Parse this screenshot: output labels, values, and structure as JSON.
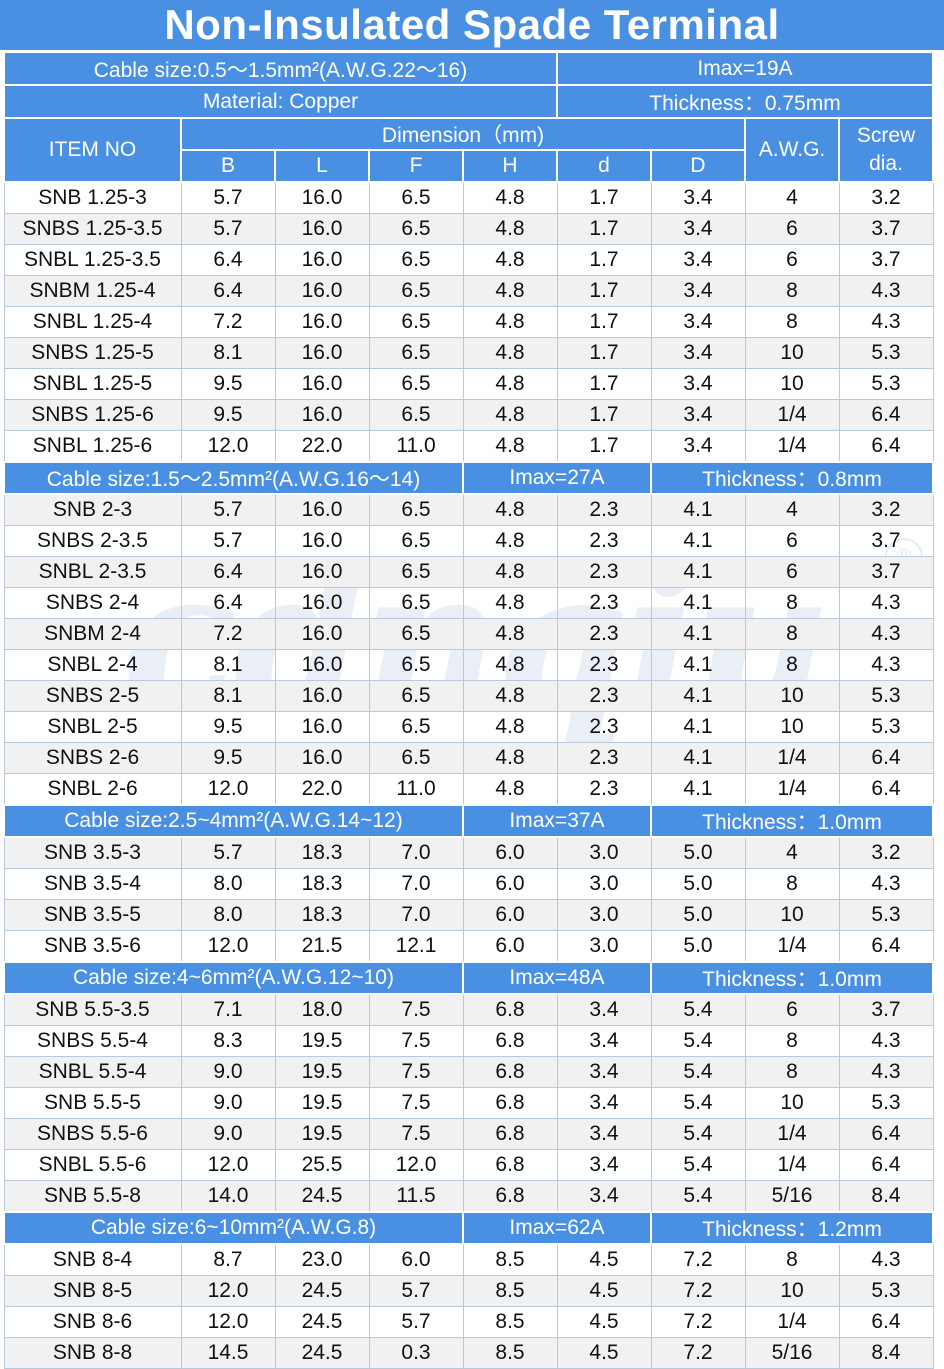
{
  "title": "Non-Insulated Spade Terminal",
  "colors": {
    "header_blue": "#4a90e2",
    "header_text": "#ffffff",
    "grid_line": "#b9c9dc",
    "row_alt": "#f1f1f1"
  },
  "watermark": "cdnqiu",
  "watermark_mark": "®",
  "top_info": {
    "cable_size": "Cable size:0.5～1.5mm²(A.W.G.22～16)",
    "imax": "Imax=19A",
    "material": "Material: Copper",
    "thickness": "Thickness：0.75mm"
  },
  "headers": {
    "item_no": "ITEM NO",
    "dimension": "Dimension（mm)",
    "dims": [
      "B",
      "L",
      "F",
      "H",
      "d",
      "D"
    ],
    "awg": "A.W.G.",
    "screw": "Screw dia."
  },
  "groups": [
    {
      "rows": [
        [
          "SNB 1.25-3",
          "5.7",
          "16.0",
          "6.5",
          "4.8",
          "1.7",
          "3.4",
          "4",
          "3.2"
        ],
        [
          "SNBS 1.25-3.5",
          "5.7",
          "16.0",
          "6.5",
          "4.8",
          "1.7",
          "3.4",
          "6",
          "3.7"
        ],
        [
          "SNBL 1.25-3.5",
          "6.4",
          "16.0",
          "6.5",
          "4.8",
          "1.7",
          "3.4",
          "6",
          "3.7"
        ],
        [
          "SNBM 1.25-4",
          "6.4",
          "16.0",
          "6.5",
          "4.8",
          "1.7",
          "3.4",
          "8",
          "4.3"
        ],
        [
          "SNBL 1.25-4",
          "7.2",
          "16.0",
          "6.5",
          "4.8",
          "1.7",
          "3.4",
          "8",
          "4.3"
        ],
        [
          "SNBS 1.25-5",
          "8.1",
          "16.0",
          "6.5",
          "4.8",
          "1.7",
          "3.4",
          "10",
          "5.3"
        ],
        [
          "SNBL 1.25-5",
          "9.5",
          "16.0",
          "6.5",
          "4.8",
          "1.7",
          "3.4",
          "10",
          "5.3"
        ],
        [
          "SNBS 1.25-6",
          "9.5",
          "16.0",
          "6.5",
          "4.8",
          "1.7",
          "3.4",
          "1/4",
          "6.4"
        ],
        [
          "SNBL 1.25-6",
          "12.0",
          "22.0",
          "11.0",
          "4.8",
          "1.7",
          "3.4",
          "1/4",
          "6.4"
        ]
      ]
    },
    {
      "cable": "Cable size:1.5～2.5mm²(A.W.G.16～14)",
      "imax": "Imax=27A",
      "thickness": "Thickness：0.8mm",
      "rows": [
        [
          "SNB 2-3",
          "5.7",
          "16.0",
          "6.5",
          "4.8",
          "2.3",
          "4.1",
          "4",
          "3.2"
        ],
        [
          "SNBS 2-3.5",
          "5.7",
          "16.0",
          "6.5",
          "4.8",
          "2.3",
          "4.1",
          "6",
          "3.7"
        ],
        [
          "SNBL 2-3.5",
          "6.4",
          "16.0",
          "6.5",
          "4.8",
          "2.3",
          "4.1",
          "6",
          "3.7"
        ],
        [
          "SNBS 2-4",
          "6.4",
          "16.0",
          "6.5",
          "4.8",
          "2.3",
          "4.1",
          "8",
          "4.3"
        ],
        [
          "SNBM 2-4",
          "7.2",
          "16.0",
          "6.5",
          "4.8",
          "2.3",
          "4.1",
          "8",
          "4.3"
        ],
        [
          "SNBL 2-4",
          "8.1",
          "16.0",
          "6.5",
          "4.8",
          "2.3",
          "4.1",
          "8",
          "4.3"
        ],
        [
          "SNBS 2-5",
          "8.1",
          "16.0",
          "6.5",
          "4.8",
          "2.3",
          "4.1",
          "10",
          "5.3"
        ],
        [
          "SNBL 2-5",
          "9.5",
          "16.0",
          "6.5",
          "4.8",
          "2.3",
          "4.1",
          "10",
          "5.3"
        ],
        [
          "SNBS 2-6",
          "9.5",
          "16.0",
          "6.5",
          "4.8",
          "2.3",
          "4.1",
          "1/4",
          "6.4"
        ],
        [
          "SNBL 2-6",
          "12.0",
          "22.0",
          "11.0",
          "4.8",
          "2.3",
          "4.1",
          "1/4",
          "6.4"
        ]
      ]
    },
    {
      "cable": "Cable size:2.5~4mm²(A.W.G.14~12)",
      "imax": "Imax=37A",
      "thickness": "Thickness：1.0mm",
      "rows": [
        [
          "SNB 3.5-3",
          "5.7",
          "18.3",
          "7.0",
          "6.0",
          "3.0",
          "5.0",
          "4",
          "3.2"
        ],
        [
          "SNB 3.5-4",
          "8.0",
          "18.3",
          "7.0",
          "6.0",
          "3.0",
          "5.0",
          "8",
          "4.3"
        ],
        [
          "SNB 3.5-5",
          "8.0",
          "18.3",
          "7.0",
          "6.0",
          "3.0",
          "5.0",
          "10",
          "5.3"
        ],
        [
          "SNB 3.5-6",
          "12.0",
          "21.5",
          "12.1",
          "6.0",
          "3.0",
          "5.0",
          "1/4",
          "6.4"
        ]
      ]
    },
    {
      "cable": "Cable size:4~6mm²(A.W.G.12~10)",
      "imax": "Imax=48A",
      "thickness": "Thickness：1.0mm",
      "rows": [
        [
          "SNB 5.5-3.5",
          "7.1",
          "18.0",
          "7.5",
          "6.8",
          "3.4",
          "5.4",
          "6",
          "3.7"
        ],
        [
          "SNBS 5.5-4",
          "8.3",
          "19.5",
          "7.5",
          "6.8",
          "3.4",
          "5.4",
          "8",
          "4.3"
        ],
        [
          "SNBL 5.5-4",
          "9.0",
          "19.5",
          "7.5",
          "6.8",
          "3.4",
          "5.4",
          "8",
          "4.3"
        ],
        [
          "SNB 5.5-5",
          "9.0",
          "19.5",
          "7.5",
          "6.8",
          "3.4",
          "5.4",
          "10",
          "5.3"
        ],
        [
          "SNBS 5.5-6",
          "9.0",
          "19.5",
          "7.5",
          "6.8",
          "3.4",
          "5.4",
          "1/4",
          "6.4"
        ],
        [
          "SNBL 5.5-6",
          "12.0",
          "25.5",
          "12.0",
          "6.8",
          "3.4",
          "5.4",
          "1/4",
          "6.4"
        ],
        [
          "SNB 5.5-8",
          "14.0",
          "24.5",
          "11.5",
          "6.8",
          "3.4",
          "5.4",
          "5/16",
          "8.4"
        ]
      ]
    },
    {
      "cable": "Cable size:6~10mm²(A.W.G.8)",
      "imax": "Imax=62A",
      "thickness": "Thickness：1.2mm",
      "rows": [
        [
          "SNB 8-4",
          "8.7",
          "23.0",
          "6.0",
          "8.5",
          "4.5",
          "7.2",
          "8",
          "4.3"
        ],
        [
          "SNB 8-5",
          "12.0",
          "24.5",
          "5.7",
          "8.5",
          "4.5",
          "7.2",
          "10",
          "5.3"
        ],
        [
          "SNB 8-6",
          "12.0",
          "24.5",
          "5.7",
          "8.5",
          "4.5",
          "7.2",
          "1/4",
          "6.4"
        ],
        [
          "SNB 8-8",
          "14.5",
          "24.5",
          "0.3",
          "8.5",
          "4.5",
          "7.2",
          "5/16",
          "8.4"
        ]
      ]
    }
  ]
}
